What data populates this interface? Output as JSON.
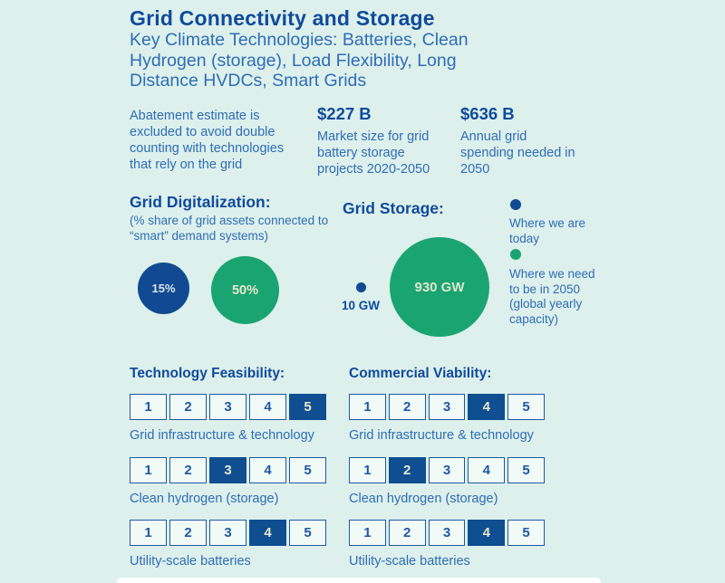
{
  "colors": {
    "background": "#ddf0ec",
    "heading_blue": "#0f4a9c",
    "body_blue": "#2e6db6",
    "navy_fill": "#114a92",
    "green_fill": "#1aa471",
    "selected_cell": "#0f4e91",
    "cream_text": "#e9e8cb"
  },
  "header": {
    "title": "Grid Connectivity and Storage",
    "subtitle": "Key Climate Technologies: Batteries, Clean Hydrogen (storage), Load Flexibility, Long Distance HVDCs, Smart Grids"
  },
  "stats": {
    "note": "Abatement estimate is excluded to avoid double counting with technologies that rely on the grid",
    "items": [
      {
        "value": "$227 B",
        "label": "Market size for grid battery storage projects 2020-2050"
      },
      {
        "value": "$636 B",
        "label": "Annual grid spending needed in 2050"
      }
    ]
  },
  "digitalization": {
    "heading": "Grid Digitalization:",
    "note": "(% share of grid assets connected to “smart” demand systems)",
    "today_label": "15%",
    "target_label": "50%"
  },
  "storage": {
    "heading": "Grid Storage:",
    "today_label": "10 GW",
    "target_label": "930 GW"
  },
  "legend": {
    "today": "Where we are today",
    "target": "Where we need to be in 2050 (global yearly capacity)"
  },
  "ratings": {
    "cells": [
      "1",
      "2",
      "3",
      "4",
      "5"
    ],
    "columns": [
      {
        "heading": "Technology Feasibility:",
        "scales": [
          {
            "label": "Grid infrastructure & technology",
            "selected": 5
          },
          {
            "label": "Clean hydrogen (storage)",
            "selected": 3
          },
          {
            "label": "Utility-scale batteries",
            "selected": 4
          }
        ]
      },
      {
        "heading": "Commercial Viability:",
        "scales": [
          {
            "label": "Grid infrastructure & technology",
            "selected": 4
          },
          {
            "label": "Clean hydrogen (storage)",
            "selected": 2
          },
          {
            "label": "Utility-scale batteries",
            "selected": 4
          }
        ]
      }
    ]
  },
  "chart_data": [
    {
      "type": "scatter",
      "subtype": "bubble-comparison",
      "title": "Grid Digitalization: (% share of grid assets connected to “smart” demand systems)",
      "series": [
        {
          "name": "Where we are today",
          "value": 15,
          "unit": "%",
          "color": "#114a92"
        },
        {
          "name": "Where we need to be in 2050 (global yearly capacity)",
          "value": 50,
          "unit": "%",
          "color": "#1aa471"
        }
      ],
      "legend_position": "right"
    },
    {
      "type": "scatter",
      "subtype": "bubble-comparison",
      "title": "Grid Storage:",
      "series": [
        {
          "name": "Where we are today",
          "value": 10,
          "unit": "GW",
          "color": "#114a92"
        },
        {
          "name": "Where we need to be in 2050 (global yearly capacity)",
          "value": 930,
          "unit": "GW",
          "color": "#1aa471"
        }
      ],
      "legend_position": "right"
    },
    {
      "type": "table",
      "title": "Technology Feasibility",
      "scale_range": [
        1,
        5
      ],
      "categories": [
        "Grid infrastructure & technology",
        "Clean hydrogen (storage)",
        "Utility-scale batteries"
      ],
      "values": [
        5,
        3,
        4
      ]
    },
    {
      "type": "table",
      "title": "Commercial Viability",
      "scale_range": [
        1,
        5
      ],
      "categories": [
        "Grid infrastructure & technology",
        "Clean hydrogen (storage)",
        "Utility-scale batteries"
      ],
      "values": [
        4,
        2,
        4
      ]
    }
  ]
}
